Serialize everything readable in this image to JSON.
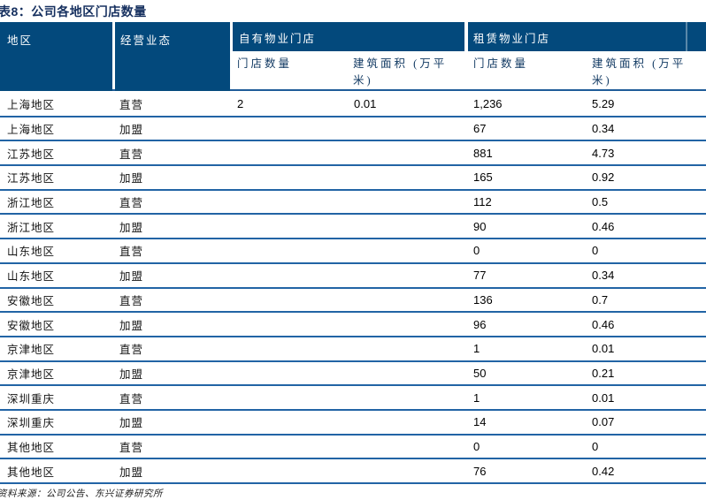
{
  "title": "表8：公司各地区门店数量",
  "table": {
    "headers": {
      "region": "地区",
      "business_type": "经营业态",
      "own_property_group": "自有物业门店",
      "leased_property_group": "租赁物业门店",
      "store_count": "门店数量",
      "building_area": "建筑面积 (万平米)"
    },
    "rows": [
      {
        "region": "上海地区",
        "business": "直营",
        "own_count": "2",
        "own_area": "0.01",
        "lease_count": "1,236",
        "lease_area": "5.29"
      },
      {
        "region": "上海地区",
        "business": "加盟",
        "own_count": "",
        "own_area": "",
        "lease_count": "67",
        "lease_area": "0.34"
      },
      {
        "region": "江苏地区",
        "business": "直营",
        "own_count": "",
        "own_area": "",
        "lease_count": "881",
        "lease_area": "4.73"
      },
      {
        "region": "江苏地区",
        "business": "加盟",
        "own_count": "",
        "own_area": "",
        "lease_count": "165",
        "lease_area": "0.92"
      },
      {
        "region": "浙江地区",
        "business": "直营",
        "own_count": "",
        "own_area": "",
        "lease_count": "112",
        "lease_area": "0.5"
      },
      {
        "region": "浙江地区",
        "business": "加盟",
        "own_count": "",
        "own_area": "",
        "lease_count": "90",
        "lease_area": "0.46"
      },
      {
        "region": "山东地区",
        "business": "直营",
        "own_count": "",
        "own_area": "",
        "lease_count": "0",
        "lease_area": "0"
      },
      {
        "region": "山东地区",
        "business": "加盟",
        "own_count": "",
        "own_area": "",
        "lease_count": "77",
        "lease_area": "0.34"
      },
      {
        "region": "安徽地区",
        "business": "直营",
        "own_count": "",
        "own_area": "",
        "lease_count": "136",
        "lease_area": "0.7"
      },
      {
        "region": "安徽地区",
        "business": "加盟",
        "own_count": "",
        "own_area": "",
        "lease_count": "96",
        "lease_area": "0.46"
      },
      {
        "region": "京津地区",
        "business": "直营",
        "own_count": "",
        "own_area": "",
        "lease_count": "1",
        "lease_area": "0.01"
      },
      {
        "region": "京津地区",
        "business": "加盟",
        "own_count": "",
        "own_area": "",
        "lease_count": "50",
        "lease_area": "0.21"
      },
      {
        "region": "深圳重庆",
        "business": "直营",
        "own_count": "",
        "own_area": "",
        "lease_count": "1",
        "lease_area": "0.01"
      },
      {
        "region": "深圳重庆",
        "business": "加盟",
        "own_count": "",
        "own_area": "",
        "lease_count": "14",
        "lease_area": "0.07"
      },
      {
        "region": "其他地区",
        "business": "直营",
        "own_count": "",
        "own_area": "",
        "lease_count": "0",
        "lease_area": "0"
      },
      {
        "region": "其他地区",
        "business": "加盟",
        "own_count": "",
        "own_area": "",
        "lease_count": "76",
        "lease_area": "0.42"
      }
    ]
  },
  "footer": {
    "source": "资料来源：公司公告、东兴证券研究所"
  },
  "colors": {
    "header_background": "#03497C",
    "header_text": "#FFFFFF",
    "subheader_text": "#123A63",
    "row_separator": "#2264A5",
    "title_text": "#16305F"
  }
}
